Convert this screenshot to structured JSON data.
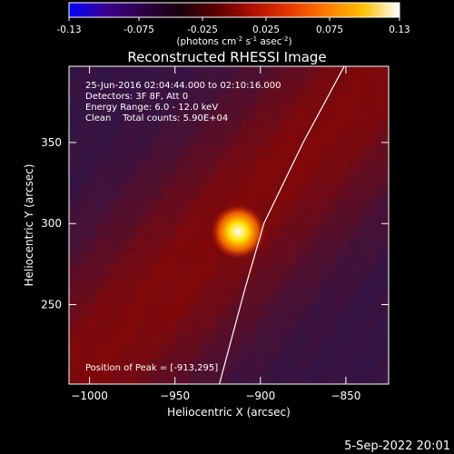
{
  "colorbar": {
    "ticks": [
      "-0.13",
      "-0.075",
      "-0.025",
      "0.025",
      "0.075",
      "0.13"
    ],
    "tick_values": [
      -0.13,
      -0.075,
      -0.025,
      0.025,
      0.075,
      0.13
    ],
    "range": [
      -0.13,
      0.13
    ],
    "units_main": "(photons cm",
    "units_exp1": "-2",
    "units_mid1": " s",
    "units_exp2": "-1",
    "units_mid2": " asec",
    "units_exp3": "-2",
    "units_end": ")",
    "colors": [
      "#0000ff",
      "#3a0090",
      "#2e0046",
      "#1a0010",
      "#5a0000",
      "#b01000",
      "#e83800",
      "#ff7a00",
      "#ffc000",
      "#ffffff"
    ]
  },
  "chart_data": {
    "type": "heatmap",
    "title": "Reconstructed RHESSI Image",
    "xlabel": "Heliocentric X (arcsec)",
    "ylabel": "Heliocentric Y (arcsec)",
    "xlim": [
      -1012,
      -825
    ],
    "ylim": [
      201,
      397
    ],
    "x_ticks": [
      -1000,
      -950,
      -900,
      -850
    ],
    "x_tick_labels": [
      "−1000",
      "−950",
      "−900",
      "−850"
    ],
    "y_ticks": [
      250,
      300,
      350
    ],
    "y_tick_labels": [
      "250",
      "300",
      "350"
    ],
    "peak": {
      "x": -913,
      "y": 295
    },
    "info_lines": [
      "25-Jun-2016 02:04:44.000 to 02:10:16.000",
      "Detectors: 3F 8F, Att 0",
      "Energy Range: 6.0 - 12.0 keV",
      "Clean    Total counts: 5.90E+04"
    ],
    "peak_label": "Position of Peak = [-913,295]",
    "limb_points": [
      [
        -924,
        201
      ],
      [
        -909,
        260
      ],
      [
        -898,
        300
      ],
      [
        -875,
        350
      ],
      [
        -851,
        397
      ]
    ]
  },
  "footer": {
    "date": "5-Sep-2022 20:01"
  }
}
